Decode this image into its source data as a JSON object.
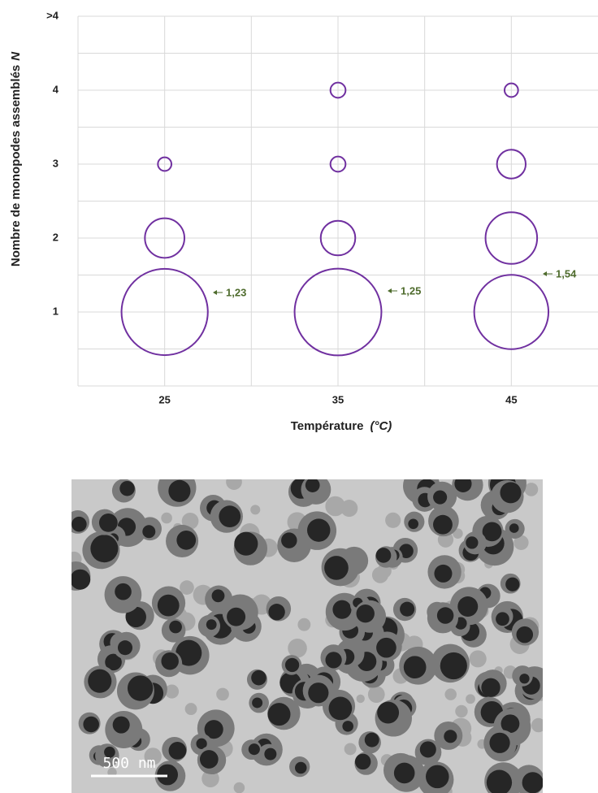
{
  "chart_data": {
    "type": "bubble",
    "x_label": [
      "Température",
      "(°C)"
    ],
    "y_label": [
      "Nombre de monopodes assemblés",
      "N"
    ],
    "xlim": [
      20,
      50
    ],
    "xticks": [
      25,
      35,
      45
    ],
    "x_minor_grid": [
      30,
      40
    ],
    "ylim": [
      0,
      5
    ],
    "yticks": [
      1,
      2,
      3,
      4,
      {
        "value": 5,
        "label": ">4"
      }
    ],
    "y_minor_grid": [
      0.5,
      1.5,
      2.5,
      3.5,
      4.5
    ],
    "grid": true,
    "series": [
      {
        "color": "#7030a0",
        "x": [
          25,
          25,
          25,
          35,
          35,
          35,
          35,
          45,
          45,
          45,
          45
        ],
        "y": [
          1,
          2,
          3,
          1,
          2,
          3,
          4,
          1,
          2,
          3,
          4
        ],
        "sizes": [
          81,
          17,
          2,
          82,
          13,
          2.5,
          2.5,
          60,
          29,
          9,
          2
        ]
      }
    ],
    "annotations": [
      "1,23",
      "1,25",
      "1,54"
    ],
    "annotation_color": "#4e6b2c"
  },
  "image": {
    "scale_bar": "500 nm"
  }
}
